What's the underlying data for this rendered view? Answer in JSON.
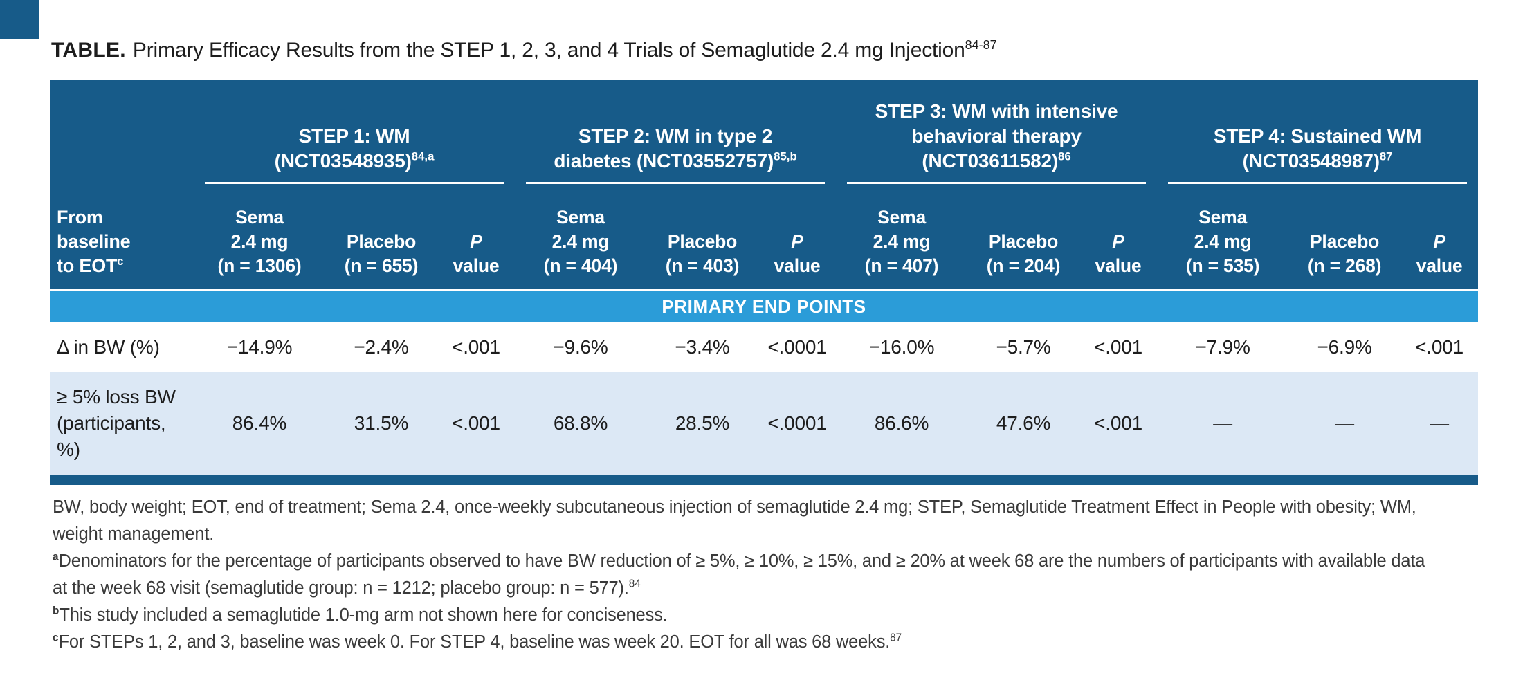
{
  "title": {
    "label": "TABLE.",
    "text": "Primary Efficacy Results from the STEP 1, 2, 3, and 4 Trials of Semaglutide 2.4 mg Injection",
    "sup": "84-87"
  },
  "table": {
    "row_header": {
      "l1": "From",
      "l2": "baseline",
      "l3": "to EOT",
      "sup": "c"
    },
    "groups": [
      {
        "t1": "STEP 1: WM",
        "t2": "(NCT03548935)",
        "sup": "84,a",
        "sema": [
          "Sema",
          "2.4 mg",
          "(n = 1306)"
        ],
        "placebo": [
          "Placebo",
          "(n = 655)"
        ],
        "p": [
          "P",
          "value"
        ]
      },
      {
        "t1": "STEP 2: WM in type 2",
        "t2": "diabetes (NCT03552757)",
        "sup": "85,b",
        "sema": [
          "Sema",
          "2.4 mg",
          "(n = 404)"
        ],
        "placebo": [
          "Placebo",
          "(n = 403)"
        ],
        "p": [
          "P",
          "value"
        ]
      },
      {
        "t1": "STEP 3: WM with intensive",
        "t2": "behavioral therapy",
        "t3": "(NCT03611582)",
        "sup": "86",
        "sema": [
          "Sema",
          "2.4 mg",
          "(n = 407)"
        ],
        "placebo": [
          "Placebo",
          "(n = 204)"
        ],
        "p": [
          "P",
          "value"
        ]
      },
      {
        "t1": "STEP 4: Sustained WM",
        "t2": "(NCT03548987)",
        "sup": "87",
        "sema": [
          "Sema",
          "2.4 mg",
          "(n = 535)"
        ],
        "placebo": [
          "Placebo",
          "(n = 268)"
        ],
        "p": [
          "P",
          "value"
        ]
      }
    ],
    "banner": "PRIMARY END POINTS",
    "rows": [
      {
        "label": "Δ in BW (%)",
        "values": [
          "−14.9%",
          "−2.4%",
          "<.001",
          "−9.6%",
          "−3.4%",
          "<.0001",
          "−16.0%",
          "−5.7%",
          "<.001",
          "−7.9%",
          "−6.9%",
          "<.001"
        ]
      },
      {
        "label": "≥ 5% loss BW (participants, %)",
        "values": [
          "86.4%",
          "31.5%",
          "<.001",
          "68.8%",
          "28.5%",
          "<.0001",
          "86.6%",
          "47.6%",
          "<.001",
          "—",
          "—",
          "—"
        ]
      }
    ]
  },
  "footnotes": {
    "abbrev": "BW, body weight; EOT, end of treatment; Sema 2.4, once-weekly subcutaneous injection of semaglutide 2.4 mg; STEP, Semaglutide Treatment Effect in People with obesity; WM, weight management.",
    "a": {
      "marker": "a",
      "text": "Denominators for the percentage of participants observed to have BW reduction of ≥ 5%, ≥ 10%, ≥ 15%, and ≥ 20% at week 68 are the numbers of participants with available data at the week 68 visit (semaglutide group: n = 1212; placebo group: n = 577).",
      "sup": "84"
    },
    "b": {
      "marker": "b",
      "text": "This study included a semaglutide 1.0-mg arm not shown here for conciseness."
    },
    "c": {
      "marker": "c",
      "text": "For STEPs 1, 2, and 3, baseline was week 0. For STEP 4, baseline was week 20. EOT for all was 68 weeks.",
      "sup": "87"
    }
  },
  "colors": {
    "header_blue": "#175B89",
    "banner_blue": "#2B9CD8",
    "row_alt_blue": "#DCE8F5",
    "footnote_text": "#3A3A3A"
  }
}
